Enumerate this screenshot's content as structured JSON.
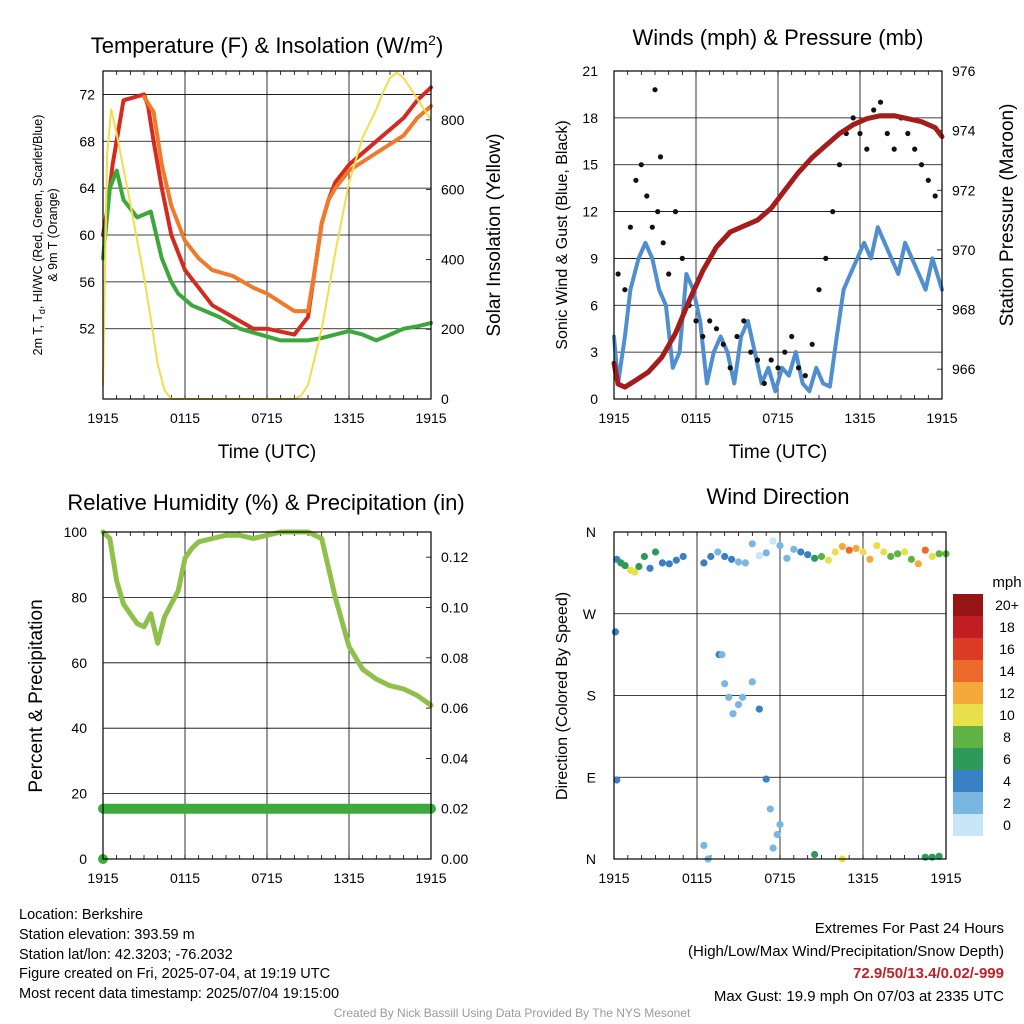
{
  "charts": {
    "temp": {
      "title_main": "Temperature (F) & Insolation (W/m",
      "title_sup": "2",
      "title_end": ")",
      "xlabel": "Time (UTC)",
      "ylabel_line1_a": "2m T, T",
      "ylabel_line1_sub": "d",
      "ylabel_line1_b": ", HI/WC (Red, Green, Scarlet/Blue)",
      "ylabel_line2": "& 9m T (Orange)",
      "ylabel_right": "Solar Insolation (Yellow)"
    },
    "wind": {
      "title": "Winds (mph) & Pressure (mb)",
      "xlabel": "Time (UTC)",
      "ylabel": "Sonic Wind & Gust (Blue, Black)",
      "ylabel_right": "Station Pressure (Maroon)"
    },
    "rh": {
      "title": "Relative Humidity (%) & Precipitation (in)",
      "ylabel": "Percent & Precipitation"
    },
    "dir": {
      "title": "Wind Direction",
      "ylabel": "Direction (Colored By Speed)",
      "colorbar_title": "mph"
    }
  },
  "chart_data": [
    {
      "type": "line",
      "x_ticks": [
        "1915",
        "0115",
        "0715",
        "1315",
        "1915"
      ],
      "x_range_hours": [
        0,
        24
      ],
      "ylim": [
        46,
        74
      ],
      "y_ticks": [
        52,
        56,
        60,
        64,
        68,
        72
      ],
      "ylim_right": [
        0,
        940
      ],
      "y_ticks_right": [
        0,
        200,
        400,
        600,
        800
      ],
      "series": [
        {
          "color": "#d42a20",
          "x": [
            0,
            0.3,
            0.7,
            1.5,
            3.0,
            3.3,
            3.7,
            4.3,
            5.0,
            6.0,
            7.0,
            8.0,
            9.5,
            11.0,
            12.0,
            14.0,
            15.0,
            15.5,
            16.0,
            16.5,
            17.0,
            18.0,
            20.0,
            22.0,
            23.0,
            24.0
          ],
          "y": [
            60,
            62,
            66,
            71.5,
            72,
            71,
            68,
            64,
            60,
            57,
            55.5,
            54,
            53,
            52,
            52,
            51.5,
            53,
            57,
            61,
            63,
            64.5,
            66,
            68,
            70,
            71.5,
            72.6
          ]
        },
        {
          "color": "#f07a2a",
          "x": [
            3.0,
            3.7,
            4.3,
            5.0,
            6.0,
            7.0,
            8.0,
            9.5,
            11.0,
            12.0,
            14.0,
            15.0,
            15.5,
            16.0,
            16.5,
            17.0,
            18.0,
            20.0,
            22.0,
            23.0,
            24.0
          ],
          "y": [
            71.8,
            70.5,
            66,
            62.5,
            59.5,
            58,
            57,
            56.5,
            55.5,
            55,
            53.5,
            53.5,
            57,
            61,
            63,
            64,
            65.5,
            67,
            68.5,
            70,
            71
          ]
        },
        {
          "color": "#3ca83c",
          "x": [
            0,
            0.5,
            1.0,
            1.5,
            2.5,
            3.5,
            4.3,
            5.0,
            5.5,
            6.5,
            7.5,
            8.5,
            10.0,
            11.5,
            13.0,
            14.0,
            15.0,
            16.0,
            17.0,
            18.0,
            19.0,
            20.0,
            21.0,
            22.0,
            23.0,
            24.0
          ],
          "y": [
            58,
            64,
            65.5,
            63,
            61.5,
            62,
            58,
            56,
            55,
            54,
            53.5,
            53,
            52,
            51.5,
            51,
            51,
            51,
            51.2,
            51.5,
            51.8,
            51.5,
            51,
            51.5,
            52,
            52.2,
            52.5
          ]
        },
        {
          "color": "#f4dc4a",
          "axis": "right",
          "x": [
            0,
            0.3,
            0.6,
            1.0,
            2.0,
            3.0,
            3.5,
            4.0,
            4.5,
            5.0,
            5.5,
            14.0,
            14.5,
            15.0,
            16.0,
            17.0,
            18.0,
            19.0,
            20.0,
            20.5,
            21.0,
            21.5,
            22.0,
            23.0,
            24.0
          ],
          "y": [
            40,
            700,
            830,
            760,
            560,
            350,
            230,
            100,
            25,
            0,
            0,
            0,
            10,
            40,
            200,
            420,
            620,
            750,
            830,
            880,
            920,
            935,
            920,
            860,
            800
          ]
        }
      ]
    },
    {
      "type": "line",
      "x_ticks": [
        "1915",
        "0115",
        "0715",
        "1315",
        "1915"
      ],
      "x_range_hours": [
        0,
        24
      ],
      "ylim": [
        0,
        21
      ],
      "y_ticks": [
        0,
        3,
        6,
        9,
        12,
        15,
        18,
        21
      ],
      "ylim_right": [
        965,
        976
      ],
      "y_ticks_right": [
        966,
        968,
        970,
        972,
        974,
        976
      ],
      "series": [
        {
          "color": "#4f8fcf",
          "x": [
            0,
            0.3,
            0.8,
            1.2,
            1.8,
            2.3,
            2.8,
            3.3,
            3.8,
            4.3,
            4.8,
            5.3,
            5.8,
            6.3,
            6.8,
            7.3,
            7.8,
            8.3,
            8.8,
            9.3,
            9.8,
            10.3,
            10.8,
            11.3,
            11.8,
            12.3,
            12.8,
            13.3,
            13.8,
            14.3,
            14.8,
            15.3,
            15.8,
            16.3,
            16.8,
            17.3,
            17.8,
            18.3,
            18.8,
            19.3,
            19.8,
            20.3,
            20.8,
            21.3,
            21.8,
            22.3,
            22.8,
            23.3,
            24.0
          ],
          "y": [
            4,
            1,
            4,
            7,
            9,
            10,
            9,
            7,
            6,
            2,
            3,
            8,
            7,
            5,
            1,
            3,
            4,
            3,
            1,
            4,
            5,
            3,
            1,
            2,
            0.5,
            2,
            1.5,
            3,
            1,
            0.5,
            2,
            1,
            0.8,
            4,
            7,
            8,
            9,
            10,
            9,
            11,
            10,
            9,
            8,
            10,
            9,
            8,
            7,
            9,
            7
          ]
        },
        {
          "color": "#111111",
          "kind": "scatter",
          "x": [
            0.3,
            0.8,
            1.2,
            1.6,
            2.0,
            2.4,
            2.8,
            3.2,
            3.6,
            4.0,
            4.5,
            5.0,
            5.5,
            6.0,
            6.5,
            7.0,
            7.5,
            8.0,
            8.5,
            9.0,
            9.5,
            10.0,
            10.5,
            11.0,
            11.5,
            12.0,
            12.5,
            13.0,
            13.5,
            14.0,
            14.5,
            15.0,
            15.5,
            16.0,
            16.5,
            17.0,
            17.5,
            18.0,
            18.5,
            19.0,
            19.5,
            20.0,
            20.5,
            21.0,
            21.5,
            22.0,
            22.5,
            23.0,
            23.5,
            3.0,
            3.4
          ],
          "y": [
            8,
            7,
            11,
            14,
            15,
            13,
            11,
            12,
            10,
            8,
            12,
            9,
            6,
            5,
            4,
            5,
            4.5,
            3.5,
            2,
            4,
            5,
            3,
            2.5,
            1,
            2.5,
            2,
            3,
            4,
            2,
            1.5,
            3.5,
            7,
            9,
            12,
            15,
            17,
            18,
            17,
            16,
            18.5,
            19,
            17,
            16,
            18,
            17,
            16,
            15,
            14,
            13,
            19.8,
            15.5
          ]
        },
        {
          "color": "#a51c1c",
          "axis": "right",
          "x": [
            0,
            0.3,
            0.8,
            1.5,
            2.5,
            3.5,
            4.5,
            5.5,
            6.5,
            7.5,
            8.5,
            9.5,
            10.5,
            11.5,
            12.5,
            13.5,
            14.5,
            15.5,
            16.5,
            17.5,
            18.5,
            19.5,
            20.5,
            21.5,
            22.5,
            23.5,
            24.0
          ],
          "y": [
            966.2,
            965.5,
            965.4,
            965.6,
            965.9,
            966.4,
            967.2,
            968.3,
            969.3,
            970.1,
            970.6,
            970.8,
            971.0,
            971.4,
            972.0,
            972.6,
            973.1,
            973.5,
            973.9,
            974.2,
            974.4,
            974.5,
            974.5,
            974.4,
            974.3,
            974.1,
            973.8
          ]
        }
      ]
    },
    {
      "type": "line",
      "x_ticks": [
        "1915",
        "0115",
        "0715",
        "1315",
        "1915"
      ],
      "x_range_hours": [
        0,
        24
      ],
      "ylim": [
        0,
        100
      ],
      "y_ticks": [
        0,
        20,
        40,
        60,
        80,
        100
      ],
      "ylim_right": [
        0,
        0.13
      ],
      "y_ticks_right": [
        "0.00",
        "0.02",
        "0.04",
        "0.06",
        "0.08",
        "0.10",
        "0.12"
      ],
      "series": [
        {
          "color": "#8ec04a",
          "x": [
            0,
            0.5,
            1.0,
            1.5,
            2.0,
            2.5,
            3.0,
            3.5,
            4.0,
            4.5,
            5.0,
            5.5,
            6.0,
            6.5,
            7.0,
            8.0,
            9.0,
            10.0,
            11.0,
            12.0,
            13.0,
            14.0,
            15.0,
            16.0,
            17.0,
            18.0,
            19.0,
            20.0,
            21.0,
            22.0,
            23.0,
            24.0
          ],
          "y": [
            100,
            98,
            85,
            78,
            75,
            72,
            71,
            75,
            66,
            74,
            78,
            82,
            92,
            95,
            97,
            98,
            99,
            99,
            98,
            99,
            100,
            100,
            100,
            98,
            80,
            65,
            58,
            55,
            53,
            52,
            50,
            47
          ]
        },
        {
          "color": "#3caa3c",
          "axis": "right",
          "x": [
            0,
            24
          ],
          "y": [
            0.02,
            0.02
          ]
        }
      ]
    },
    {
      "type": "scatter",
      "x_ticks": [
        "1915",
        "0115",
        "0715",
        "1315",
        "1915"
      ],
      "x_range_hours": [
        0,
        24
      ],
      "y_ticks": [
        "N",
        "E",
        "S",
        "W",
        "N"
      ],
      "ylim_degrees": [
        0,
        360
      ],
      "colorbar": {
        "levels": [
          "0",
          "2",
          "4",
          "6",
          "8",
          "10",
          "12",
          "14",
          "16",
          "18",
          "20+"
        ],
        "colors": [
          "#c8e6f8",
          "#7ab6e2",
          "#3a80c4",
          "#2e9a5a",
          "#5fb342",
          "#e8e04a",
          "#f6a83a",
          "#ee6a2a",
          "#dd3a26",
          "#c01e22",
          "#961414"
        ]
      },
      "series": [
        {
          "x": [
            0.2,
            0.5,
            0.8,
            1.2,
            1.5,
            1.8,
            2.2,
            2.6,
            3.0,
            3.5,
            4.0,
            4.5,
            5.0,
            6.5,
            7.0,
            7.5,
            8.0,
            8.5,
            9.0,
            9.5,
            10.0,
            10.5,
            11.0,
            11.5,
            12.0,
            12.5,
            13.0,
            13.5,
            14.0,
            14.5,
            15.0,
            15.5,
            16.0,
            16.5,
            17.0,
            17.5,
            18.0,
            18.5,
            19.0,
            19.5,
            20.0,
            20.5,
            21.0,
            21.5,
            22.0,
            22.5,
            23.0,
            23.5,
            24.0
          ],
          "direction": [
            330,
            326,
            323,
            318,
            316,
            322,
            333,
            320,
            338,
            326,
            325,
            329,
            333,
            326,
            333,
            338,
            333,
            330,
            327,
            326,
            347,
            334,
            337,
            350,
            345,
            331,
            341,
            338,
            335,
            331,
            333,
            329,
            338,
            344,
            340,
            342,
            338,
            330,
            345,
            338,
            333,
            336,
            338,
            330,
            325,
            340,
            333,
            336,
            336
          ],
          "speed": [
            4,
            5,
            6,
            9,
            10,
            6,
            5,
            4,
            5,
            4,
            3,
            4,
            4,
            4,
            3,
            2,
            4,
            3,
            1,
            2,
            1,
            0,
            1,
            0,
            1,
            2,
            1,
            3,
            4,
            6,
            7,
            9,
            10,
            12,
            13,
            11,
            10,
            12,
            9,
            10,
            8,
            7,
            9,
            8,
            11,
            14,
            10,
            8,
            7
          ]
        },
        {
          "x": [
            0.1,
            0.2,
            7.6,
            7.8,
            8.0,
            8.3,
            8.6,
            9.0,
            9.3,
            10.0,
            10.5,
            11.0,
            11.3,
            11.5,
            11.8,
            12.0,
            14.5,
            6.5,
            6.8,
            22.5,
            23.0,
            23.5,
            16.5
          ],
          "direction": [
            250,
            87,
            225,
            225,
            193,
            178,
            160,
            170,
            178,
            195,
            165,
            88,
            55,
            12,
            27,
            38,
            5,
            15,
            0,
            2,
            2,
            3,
            0
          ],
          "speed": [
            3,
            3,
            3,
            2,
            2,
            1,
            1,
            2,
            1,
            2,
            3,
            3,
            2,
            2,
            1,
            2,
            6,
            2,
            2,
            6,
            5,
            6,
            10
          ]
        }
      ]
    }
  ],
  "footer": {
    "location": "Location: Berkshire",
    "elevation": "Station elevation: 393.59 m",
    "latlon": "Station lat/lon: 42.3203; -76.2032",
    "created": "Figure created on Fri, 2025-07-04, at 19:19 UTC",
    "recent": "Most recent data timestamp: 2025/07/04 19:15:00",
    "extremes_title": "Extremes For Past 24 Hours",
    "extremes_legend": "(High/Low/Max Wind/Precipitation/Snow Depth)",
    "extremes_values": "72.9/50/13.4/0.02/-999",
    "max_gust": "Max Gust: 19.9 mph On 07/03 at 2335 UTC",
    "credit": "Created By Nick Bassill Using Data Provided By The NYS Mesonet"
  }
}
